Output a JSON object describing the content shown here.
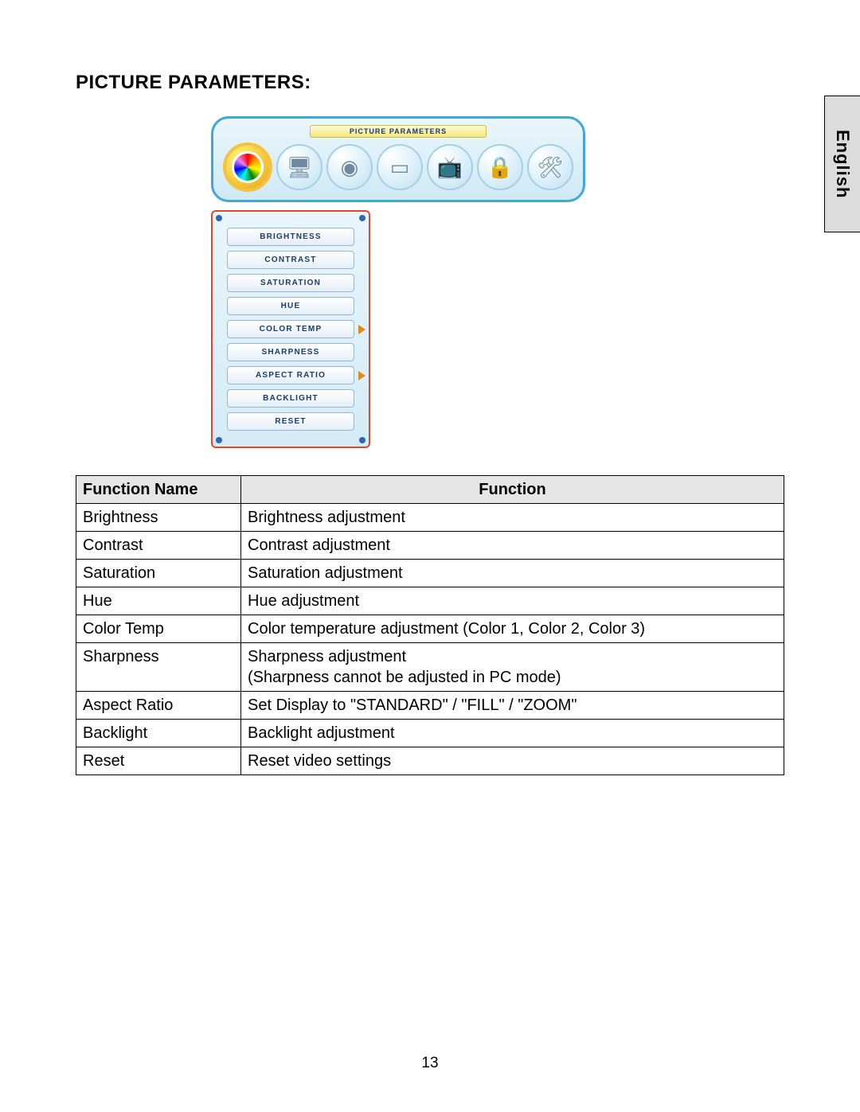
{
  "page": {
    "language_tab": "English",
    "section_title": "PICTURE PARAMETERS:",
    "page_number": "13"
  },
  "osd": {
    "top_label": "PICTURE PARAMETERS",
    "icons": [
      {
        "name": "picture-icon",
        "selected": true
      },
      {
        "name": "pc-icon",
        "glyph": "🖥",
        "selected": false
      },
      {
        "name": "audio-icon",
        "glyph": "◉",
        "selected": false
      },
      {
        "name": "tv-icon",
        "glyph": "▭",
        "selected": false
      },
      {
        "name": "channel-icon",
        "glyph": "📺",
        "selected": false
      },
      {
        "name": "lock-icon",
        "glyph": "🔒",
        "selected": false
      },
      {
        "name": "setup-icon",
        "glyph": "🛠",
        "selected": false
      }
    ],
    "items": [
      {
        "label": "BRIGHTNESS",
        "has_arrow": false
      },
      {
        "label": "CONTRAST",
        "has_arrow": false
      },
      {
        "label": "SATURATION",
        "has_arrow": false
      },
      {
        "label": "HUE",
        "has_arrow": false
      },
      {
        "label": "COLOR TEMP",
        "has_arrow": true
      },
      {
        "label": "SHARPNESS",
        "has_arrow": false
      },
      {
        "label": "ASPECT RATIO",
        "has_arrow": true
      },
      {
        "label": "BACKLIGHT",
        "has_arrow": false
      },
      {
        "label": "RESET",
        "has_arrow": false
      }
    ]
  },
  "table": {
    "header_name": "Function Name",
    "header_func": "Function",
    "rows": [
      {
        "name": "Brightness",
        "func": "Brightness adjustment"
      },
      {
        "name": "Contrast",
        "func": "Contrast adjustment"
      },
      {
        "name": "Saturation",
        "func": "Saturation adjustment"
      },
      {
        "name": "Hue",
        "func": "Hue adjustment"
      },
      {
        "name": "Color Temp",
        "func": "Color temperature adjustment (Color 1, Color 2, Color 3)"
      },
      {
        "name": "Sharpness",
        "func": "Sharpness adjustment\n(Sharpness cannot be adjusted in PC mode)"
      },
      {
        "name": "Aspect Ratio",
        "func": "Set Display to \"STANDARD\" / \"FILL\" / \"ZOOM\""
      },
      {
        "name": "Backlight",
        "func": "Backlight adjustment"
      },
      {
        "name": "Reset",
        "func": "Reset video settings"
      }
    ]
  }
}
